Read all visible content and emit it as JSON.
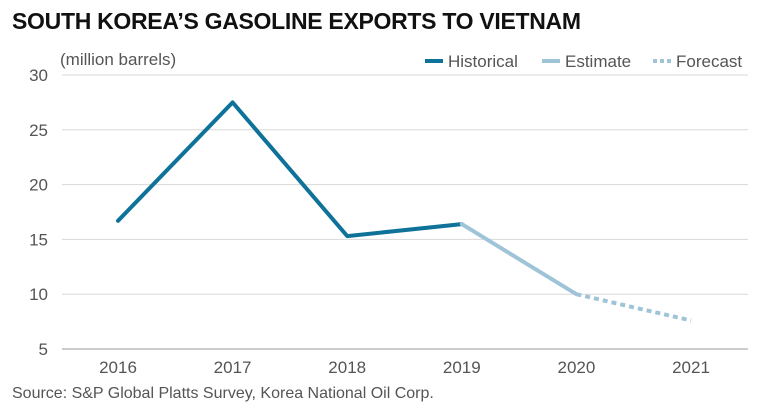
{
  "colors": {
    "historical": "#0f7399",
    "estimate": "#9fc4d8",
    "forecast": "#9fc4d8",
    "grid": "#d8d8d8"
  },
  "chart_data": {
    "type": "line",
    "title": "SOUTH KOREA’S GASOLINE EXPORTS TO VIETNAM",
    "unit_label": "(million barrels)",
    "source": "Source: S&P Global Platts Survey, Korea National Oil Corp.",
    "categories": [
      "2016",
      "2017",
      "2018",
      "2019",
      "2020",
      "2021"
    ],
    "yticks": [
      5,
      10,
      15,
      20,
      25,
      30
    ],
    "ylim": [
      5,
      30
    ],
    "xlabel": "",
    "ylabel": "",
    "grid": true,
    "legend_position": "top-right",
    "series": [
      {
        "name": "Historical",
        "style": "solid",
        "x": [
          "2016",
          "2017",
          "2018",
          "2019"
        ],
        "values": [
          16.7,
          27.5,
          15.3,
          16.4
        ]
      },
      {
        "name": "Estimate",
        "style": "solid",
        "x": [
          "2019",
          "2020"
        ],
        "values": [
          16.4,
          10.0
        ]
      },
      {
        "name": "Forecast",
        "style": "dotted",
        "x": [
          "2020",
          "2021"
        ],
        "values": [
          10.0,
          7.6
        ]
      }
    ]
  }
}
